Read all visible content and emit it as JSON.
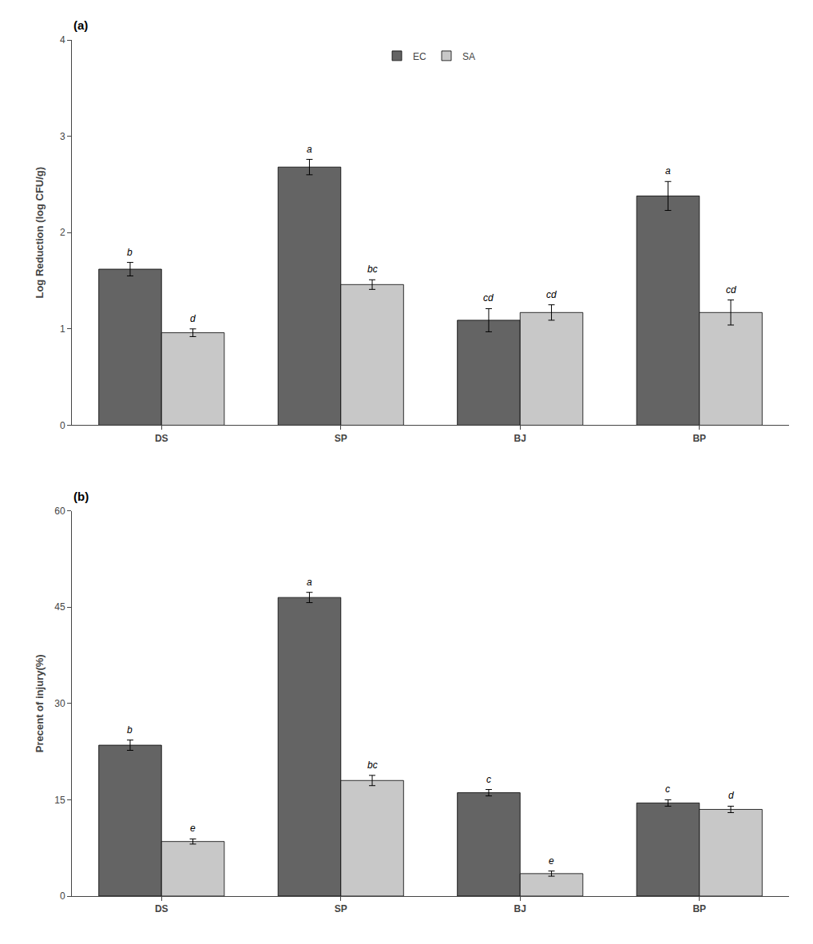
{
  "chart_data": [
    {
      "type": "bar",
      "title": "(a)",
      "categories": [
        "DS",
        "SP",
        "BJ",
        "BP"
      ],
      "ylabel": "Log Reduction (log CFU/g)",
      "ylim": [
        0,
        4
      ],
      "yticks": [
        0,
        1,
        2,
        3,
        4
      ],
      "grid": false,
      "legend": "upper center",
      "series": [
        {
          "name": "EC",
          "color": "#646464",
          "values": [
            1.62,
            2.68,
            1.09,
            2.38
          ],
          "errors": [
            0.07,
            0.08,
            0.12,
            0.15
          ],
          "annotations": [
            "b",
            "a",
            "cd",
            "a"
          ]
        },
        {
          "name": "SA",
          "color": "#c8c8c8",
          "values": [
            0.96,
            1.46,
            1.17,
            1.17
          ],
          "errors": [
            0.04,
            0.05,
            0.08,
            0.13
          ],
          "annotations": [
            "d",
            "bc",
            "cd",
            "cd"
          ]
        }
      ]
    },
    {
      "type": "bar",
      "title": "(b)",
      "categories": [
        "DS",
        "SP",
        "BJ",
        "BP"
      ],
      "ylabel": "Precent of injury(%)",
      "ylim": [
        0,
        60
      ],
      "yticks": [
        0,
        15,
        30,
        45,
        60
      ],
      "grid": false,
      "series": [
        {
          "name": "EC",
          "color": "#646464",
          "values": [
            23.5,
            46.5,
            16.1,
            14.5
          ],
          "errors": [
            0.8,
            0.8,
            0.5,
            0.5
          ],
          "annotations": [
            "b",
            "a",
            "c",
            "c"
          ]
        },
        {
          "name": "SA",
          "color": "#c8c8c8",
          "values": [
            8.5,
            18.0,
            3.5,
            13.5
          ],
          "errors": [
            0.4,
            0.8,
            0.4,
            0.5
          ],
          "annotations": [
            "e",
            "bc",
            "e",
            "d"
          ]
        }
      ]
    }
  ]
}
